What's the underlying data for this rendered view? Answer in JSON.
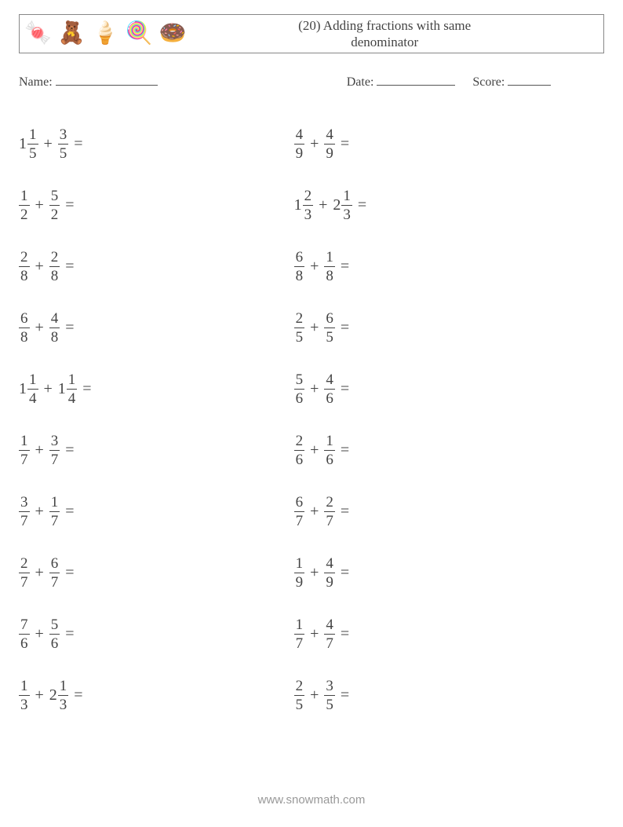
{
  "header": {
    "title_line1": "(20) Adding fractions with same",
    "title_line2": "denominator",
    "icons": [
      "🍬",
      "🧸",
      "🍦",
      "🍭",
      "🍩"
    ]
  },
  "meta": {
    "name_label": "Name:",
    "date_label": "Date:",
    "score_label": "Score:"
  },
  "columns": [
    [
      {
        "a": {
          "w": "1",
          "n": "1",
          "d": "5"
        },
        "b": {
          "n": "3",
          "d": "5"
        }
      },
      {
        "a": {
          "n": "1",
          "d": "2"
        },
        "b": {
          "n": "5",
          "d": "2"
        }
      },
      {
        "a": {
          "n": "2",
          "d": "8"
        },
        "b": {
          "n": "2",
          "d": "8"
        }
      },
      {
        "a": {
          "n": "6",
          "d": "8"
        },
        "b": {
          "n": "4",
          "d": "8"
        }
      },
      {
        "a": {
          "w": "1",
          "n": "1",
          "d": "4"
        },
        "b": {
          "w": "1",
          "n": "1",
          "d": "4"
        }
      },
      {
        "a": {
          "n": "1",
          "d": "7"
        },
        "b": {
          "n": "3",
          "d": "7"
        }
      },
      {
        "a": {
          "n": "3",
          "d": "7"
        },
        "b": {
          "n": "1",
          "d": "7"
        }
      },
      {
        "a": {
          "n": "2",
          "d": "7"
        },
        "b": {
          "n": "6",
          "d": "7"
        }
      },
      {
        "a": {
          "n": "7",
          "d": "6"
        },
        "b": {
          "n": "5",
          "d": "6"
        }
      },
      {
        "a": {
          "n": "1",
          "d": "3"
        },
        "b": {
          "w": "2",
          "n": "1",
          "d": "3"
        }
      }
    ],
    [
      {
        "a": {
          "n": "4",
          "d": "9"
        },
        "b": {
          "n": "4",
          "d": "9"
        }
      },
      {
        "a": {
          "w": "1",
          "n": "2",
          "d": "3"
        },
        "b": {
          "w": "2",
          "n": "1",
          "d": "3"
        }
      },
      {
        "a": {
          "n": "6",
          "d": "8"
        },
        "b": {
          "n": "1",
          "d": "8"
        }
      },
      {
        "a": {
          "n": "2",
          "d": "5"
        },
        "b": {
          "n": "6",
          "d": "5"
        }
      },
      {
        "a": {
          "n": "5",
          "d": "6"
        },
        "b": {
          "n": "4",
          "d": "6"
        }
      },
      {
        "a": {
          "n": "2",
          "d": "6"
        },
        "b": {
          "n": "1",
          "d": "6"
        }
      },
      {
        "a": {
          "n": "6",
          "d": "7"
        },
        "b": {
          "n": "2",
          "d": "7"
        }
      },
      {
        "a": {
          "n": "1",
          "d": "9"
        },
        "b": {
          "n": "4",
          "d": "9"
        }
      },
      {
        "a": {
          "n": "1",
          "d": "7"
        },
        "b": {
          "n": "4",
          "d": "7"
        }
      },
      {
        "a": {
          "n": "2",
          "d": "5"
        },
        "b": {
          "n": "3",
          "d": "5"
        }
      }
    ]
  ],
  "operator": "+",
  "equals": "=",
  "footer": "www.snowmath.com"
}
